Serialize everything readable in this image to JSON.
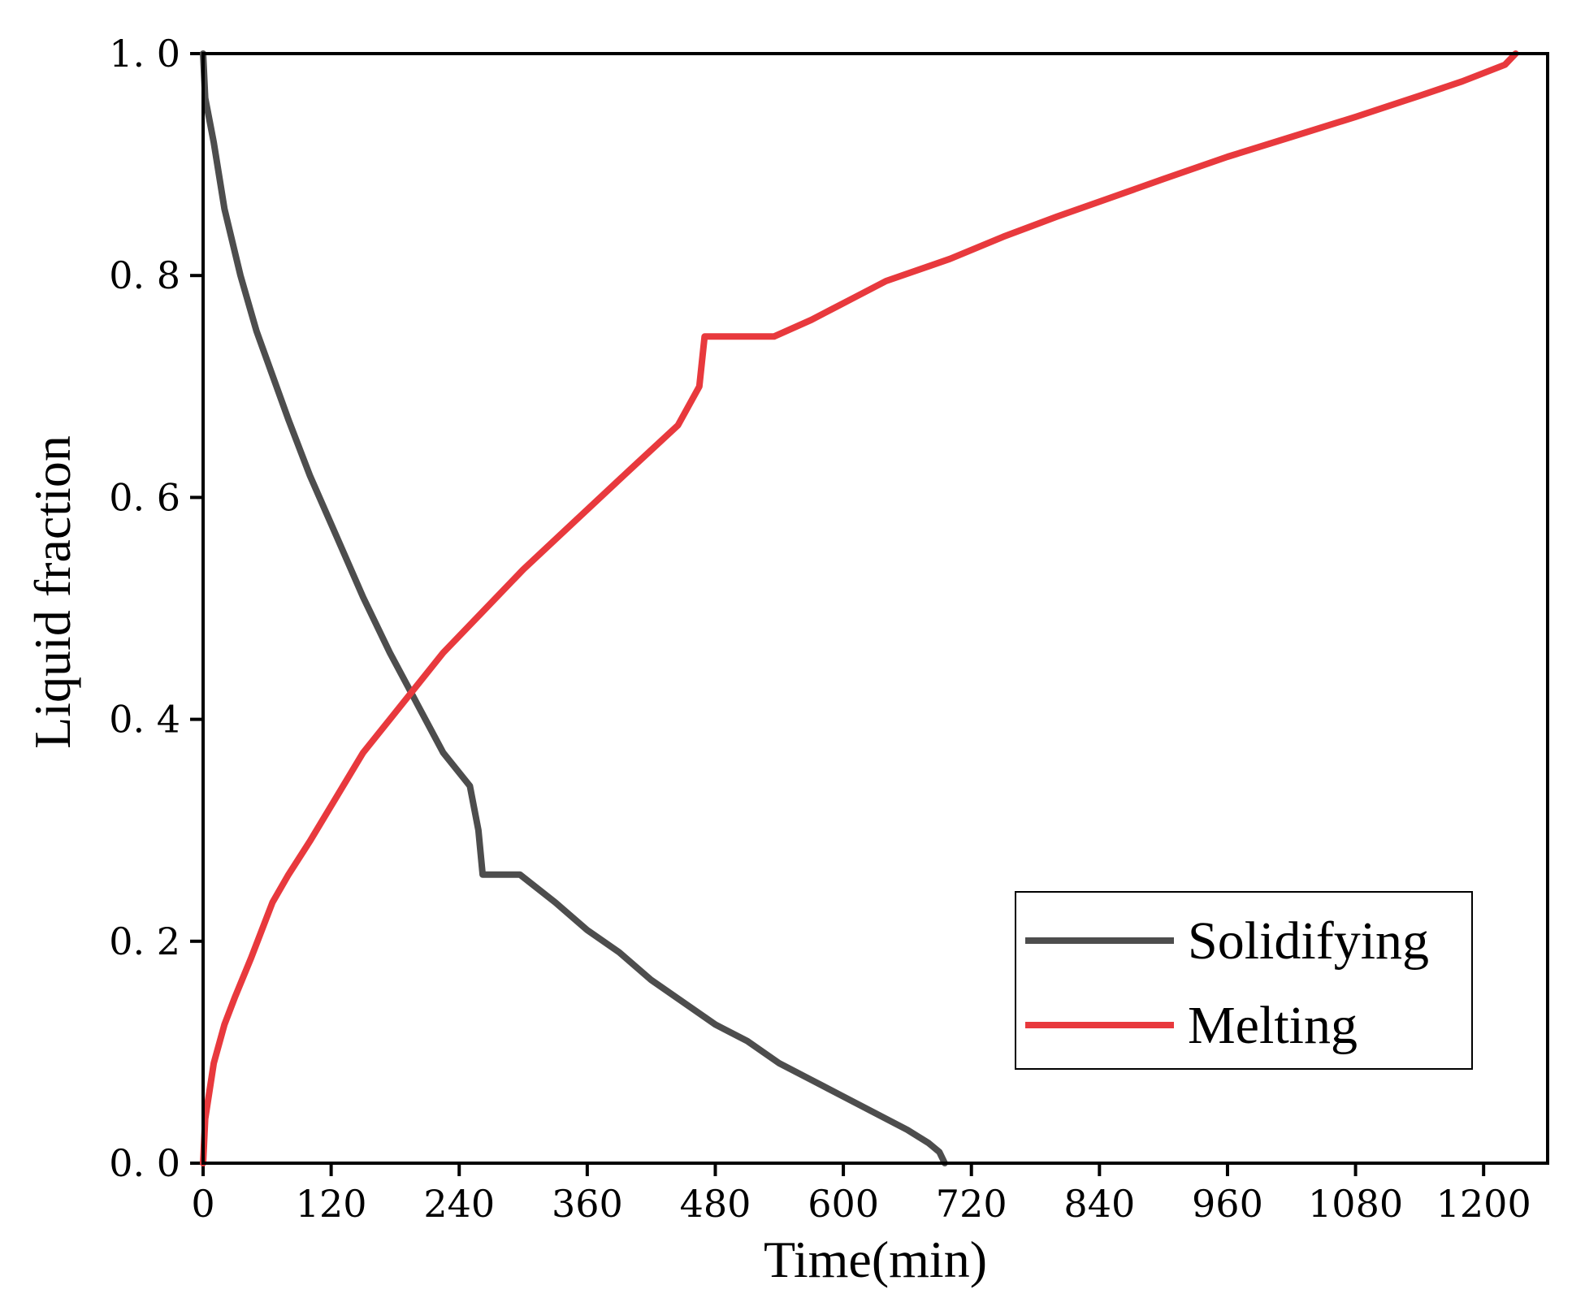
{
  "chart_data": {
    "type": "line",
    "title": "",
    "xlabel": "Time(min)",
    "ylabel": "Liquid fraction",
    "xlim": [
      0,
      1260
    ],
    "ylim": [
      0,
      1.0
    ],
    "x_ticks": [
      0,
      120,
      240,
      360,
      480,
      600,
      720,
      840,
      960,
      1080,
      1200
    ],
    "x_tick_labels": [
      "0",
      "120",
      "240",
      "360",
      "480",
      "600",
      "720",
      "840",
      "960",
      "1080",
      "1200"
    ],
    "y_ticks": [
      0,
      0.2,
      0.4,
      0.6,
      0.8,
      1.0
    ],
    "y_tick_labels": [
      "0. 0",
      "0. 2",
      "0. 4",
      "0. 6",
      "0. 8",
      "1. 0"
    ],
    "grid": false,
    "legend_position": "bottom-right",
    "series": [
      {
        "name": "Solidifying",
        "color": "#4d4d4d",
        "points": [
          [
            0,
            1.0
          ],
          [
            2,
            0.96
          ],
          [
            10,
            0.92
          ],
          [
            20,
            0.86
          ],
          [
            35,
            0.8
          ],
          [
            50,
            0.75
          ],
          [
            65,
            0.71
          ],
          [
            80,
            0.67
          ],
          [
            100,
            0.62
          ],
          [
            125,
            0.565
          ],
          [
            150,
            0.51
          ],
          [
            175,
            0.46
          ],
          [
            200,
            0.415
          ],
          [
            225,
            0.37
          ],
          [
            250,
            0.34
          ],
          [
            258,
            0.3
          ],
          [
            262,
            0.26
          ],
          [
            297,
            0.26
          ],
          [
            330,
            0.235
          ],
          [
            360,
            0.21
          ],
          [
            390,
            0.19
          ],
          [
            420,
            0.165
          ],
          [
            450,
            0.145
          ],
          [
            480,
            0.125
          ],
          [
            510,
            0.11
          ],
          [
            540,
            0.09
          ],
          [
            570,
            0.075
          ],
          [
            600,
            0.06
          ],
          [
            630,
            0.045
          ],
          [
            660,
            0.03
          ],
          [
            680,
            0.018
          ],
          [
            690,
            0.01
          ],
          [
            695,
            0.0
          ]
        ]
      },
      {
        "name": "Melting",
        "color": "#e8393d",
        "points": [
          [
            0,
            0.0
          ],
          [
            2,
            0.04
          ],
          [
            10,
            0.09
          ],
          [
            20,
            0.125
          ],
          [
            30,
            0.15
          ],
          [
            45,
            0.185
          ],
          [
            65,
            0.235
          ],
          [
            80,
            0.26
          ],
          [
            100,
            0.29
          ],
          [
            125,
            0.33
          ],
          [
            150,
            0.37
          ],
          [
            175,
            0.4
          ],
          [
            200,
            0.43
          ],
          [
            225,
            0.46
          ],
          [
            260,
            0.495
          ],
          [
            300,
            0.535
          ],
          [
            350,
            0.58
          ],
          [
            400,
            0.625
          ],
          [
            445,
            0.665
          ],
          [
            465,
            0.7
          ],
          [
            470,
            0.745
          ],
          [
            535,
            0.745
          ],
          [
            570,
            0.76
          ],
          [
            610,
            0.78
          ],
          [
            640,
            0.795
          ],
          [
            700,
            0.815
          ],
          [
            750,
            0.835
          ],
          [
            800,
            0.853
          ],
          [
            850,
            0.87
          ],
          [
            900,
            0.887
          ],
          [
            960,
            0.907
          ],
          [
            1020,
            0.925
          ],
          [
            1080,
            0.943
          ],
          [
            1140,
            0.962
          ],
          [
            1180,
            0.975
          ],
          [
            1220,
            0.99
          ],
          [
            1230,
            1.0
          ]
        ]
      }
    ]
  }
}
